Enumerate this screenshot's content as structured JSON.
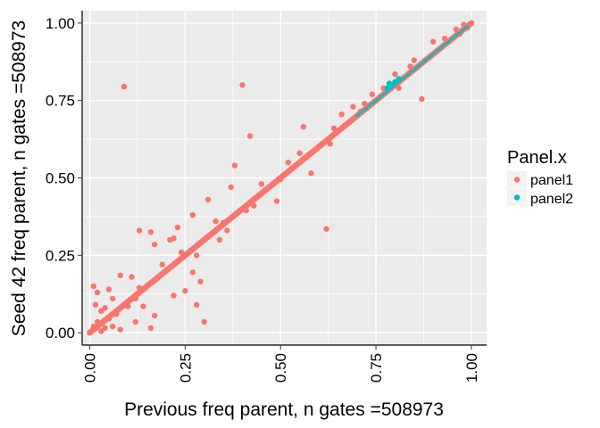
{
  "chart_data": {
    "type": "scatter",
    "title": "",
    "xlabel": "Previous freq parent, n gates =508973",
    "ylabel": "Seed 42 freq parent, n gates =508973",
    "xlim": [
      -0.02,
      1.04
    ],
    "ylim": [
      -0.04,
      1.04
    ],
    "x_ticks": [
      0.0,
      0.25,
      0.5,
      0.75,
      1.0
    ],
    "y_ticks": [
      0.0,
      0.25,
      0.5,
      0.75,
      1.0
    ],
    "x_tick_labels": [
      "0.00",
      "0.25",
      "0.50",
      "0.75",
      "1.00"
    ],
    "y_tick_labels": [
      "0.00",
      "0.25",
      "0.50",
      "0.75",
      "1.00"
    ],
    "grid": true,
    "legend_position": "right",
    "legend_title": "Panel.x",
    "colors": {
      "panel1": "#F8766D",
      "panel2": "#00BFC4",
      "panel_bg": "#EBEBEB",
      "grid": "#FFFFFF"
    },
    "series": [
      {
        "name": "panel1",
        "diagonal_range": [
          0.0,
          1.0
        ],
        "points": [
          [
            0.09,
            0.795
          ],
          [
            0.4,
            0.8
          ],
          [
            0.42,
            0.635
          ],
          [
            0.56,
            0.665
          ],
          [
            0.66,
            0.705
          ],
          [
            0.69,
            0.73
          ],
          [
            0.71,
            0.715
          ],
          [
            0.8,
            0.835
          ],
          [
            0.85,
            0.88
          ],
          [
            0.88,
            0.88
          ],
          [
            0.87,
            0.755
          ],
          [
            0.9,
            0.94
          ],
          [
            0.58,
            0.515
          ],
          [
            0.62,
            0.335
          ],
          [
            0.49,
            0.425
          ],
          [
            0.43,
            0.41
          ],
          [
            0.37,
            0.47
          ],
          [
            0.46,
            0.46
          ],
          [
            0.38,
            0.54
          ],
          [
            0.33,
            0.36
          ],
          [
            0.27,
            0.38
          ],
          [
            0.31,
            0.43
          ],
          [
            0.22,
            0.305
          ],
          [
            0.23,
            0.34
          ],
          [
            0.13,
            0.33
          ],
          [
            0.16,
            0.325
          ],
          [
            0.17,
            0.285
          ],
          [
            0.21,
            0.3
          ],
          [
            0.28,
            0.25
          ],
          [
            0.29,
            0.165
          ],
          [
            0.27,
            0.195
          ],
          [
            0.25,
            0.135
          ],
          [
            0.3,
            0.035
          ],
          [
            0.22,
            0.12
          ],
          [
            0.28,
            0.09
          ],
          [
            0.16,
            0.015
          ],
          [
            0.12,
            0.035
          ],
          [
            0.17,
            0.055
          ],
          [
            0.14,
            0.085
          ],
          [
            0.13,
            0.145
          ],
          [
            0.11,
            0.18
          ],
          [
            0.08,
            0.185
          ],
          [
            0.05,
            0.14
          ],
          [
            0.06,
            0.11
          ],
          [
            0.1,
            0.085
          ],
          [
            0.07,
            0.06
          ],
          [
            0.05,
            0.045
          ],
          [
            0.04,
            0.08
          ],
          [
            0.02,
            0.13
          ],
          [
            0.01,
            0.15
          ],
          [
            0.03,
            0.07
          ],
          [
            0.02,
            0.035
          ],
          [
            0.01,
            0.02
          ],
          [
            0.04,
            0.015
          ],
          [
            0.06,
            0.02
          ],
          [
            0.08,
            0.01
          ],
          [
            0.03,
            0.005
          ],
          [
            0.015,
            0.09
          ],
          [
            0.12,
            0.11
          ],
          [
            0.19,
            0.22
          ],
          [
            0.24,
            0.26
          ],
          [
            0.34,
            0.3
          ],
          [
            0.36,
            0.33
          ],
          [
            0.45,
            0.48
          ],
          [
            0.52,
            0.55
          ],
          [
            0.55,
            0.58
          ],
          [
            0.63,
            0.61
          ],
          [
            0.64,
            0.66
          ],
          [
            0.72,
            0.74
          ],
          [
            0.74,
            0.77
          ],
          [
            0.77,
            0.79
          ],
          [
            0.81,
            0.79
          ],
          [
            0.84,
            0.86
          ],
          [
            0.93,
            0.95
          ],
          [
            0.96,
            0.98
          ],
          [
            0.98,
            0.995
          ],
          [
            0.99,
            0.985
          ],
          [
            0.995,
            0.995
          ],
          [
            0.97,
            0.965
          ],
          [
            0.5,
            0.495
          ],
          [
            0.35,
            0.355
          ],
          [
            0.41,
            0.395
          ]
        ]
      },
      {
        "name": "panel2",
        "segment": [
          [
            0.7,
            0.7
          ],
          [
            0.99,
            0.99
          ]
        ],
        "points": [
          [
            0.78,
            0.79
          ],
          [
            0.79,
            0.8
          ],
          [
            0.8,
            0.81
          ],
          [
            0.81,
            0.82
          ],
          [
            0.785,
            0.805
          ]
        ]
      }
    ]
  }
}
